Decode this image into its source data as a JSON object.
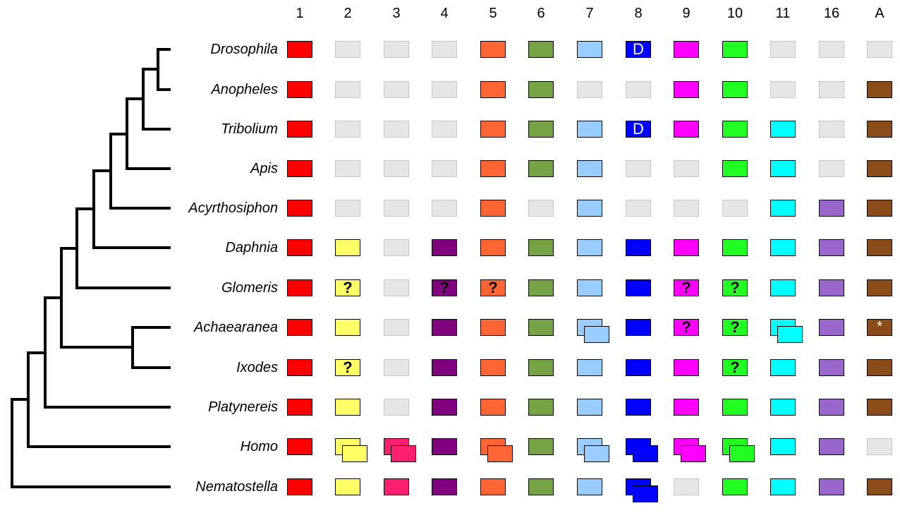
{
  "columns": [
    "1",
    "2",
    "3",
    "4",
    "5",
    "6",
    "7",
    "8",
    "9",
    "10",
    "11",
    "16",
    "A"
  ],
  "taxa": [
    "Drosophila",
    "Anopheles",
    "Tribolium",
    "Apis",
    "Acyrthosiphon",
    "Daphnia",
    "Glomeris",
    "Achaearanea",
    "Ixodes",
    "Platynereis",
    "Homo",
    "Nematostella"
  ],
  "palette": {
    "1": "#ff0000",
    "2": "#ffff66",
    "3": "#ff1f6f",
    "4": "#800080",
    "5": "#ff6633",
    "6": "#77a347",
    "7": "#99ccff",
    "8": "#0000ff",
    "9": "#ff00ff",
    "10": "#22ff22",
    "11": "#00ffff",
    "16": "#9966cc",
    "A": "#8b4c1a",
    "absent": "#e6e6e6"
  },
  "legend_note": "Each cell: present, absent, uncertain (?), duplicated (two overlapping boxes), D or * marks",
  "matrix": [
    {
      "taxon": "Drosophila",
      "cells": [
        "P",
        "A",
        "A",
        "A",
        "P",
        "P",
        "P",
        "D",
        "P",
        "P",
        "A",
        "A",
        "A"
      ]
    },
    {
      "taxon": "Anopheles",
      "cells": [
        "P",
        "A",
        "A",
        "A",
        "P",
        "P",
        "A",
        "A",
        "P",
        "P",
        "A",
        "X",
        "P"
      ]
    },
    {
      "taxon": "Tribolium",
      "cells": [
        "P",
        "A",
        "A",
        "A",
        "P",
        "P",
        "P",
        "D",
        "P",
        "P",
        "P",
        "X",
        "P"
      ]
    },
    {
      "taxon": "Apis",
      "cells": [
        "P",
        "A",
        "A",
        "A",
        "P",
        "P",
        "P",
        "A",
        "A",
        "P",
        "P",
        "A",
        "P"
      ]
    },
    {
      "taxon": "Acyrthosiphon",
      "cells": [
        "P",
        "A",
        "A",
        "A",
        "P",
        "A",
        "P",
        "A",
        "A",
        "A",
        "P",
        "P",
        "P"
      ]
    },
    {
      "taxon": "Daphnia",
      "cells": [
        "P",
        "P",
        "A",
        "P",
        "P",
        "P",
        "P",
        "P",
        "P",
        "P",
        "P",
        "P",
        "P"
      ]
    },
    {
      "taxon": "Glomeris",
      "cells": [
        "P",
        "Q",
        "A",
        "Q",
        "Q",
        "P",
        "P",
        "P",
        "Q",
        "Q",
        "P",
        "P",
        "P"
      ]
    },
    {
      "taxon": "Achaearanea",
      "cells": [
        "P",
        "P",
        "A",
        "P",
        "P",
        "P",
        "2",
        "P",
        "Q",
        "Q",
        "2",
        "P",
        "S"
      ]
    },
    {
      "taxon": "Ixodes",
      "cells": [
        "P",
        "Q",
        "A",
        "P",
        "P",
        "P",
        "P",
        "P",
        "P",
        "Q",
        "P",
        "P",
        "P"
      ]
    },
    {
      "taxon": "Platynereis",
      "cells": [
        "P",
        "P",
        "A",
        "P",
        "P",
        "P",
        "P",
        "P",
        "P",
        "P",
        "P",
        "P",
        "P"
      ]
    },
    {
      "taxon": "Homo",
      "cells": [
        "P",
        "2",
        "2",
        "P",
        "2",
        "P",
        "2",
        "2",
        "2",
        "2",
        "P",
        "P",
        "A"
      ]
    },
    {
      "taxon": "Nematostella",
      "cells": [
        "P",
        "P",
        "P",
        "P",
        "P",
        "P",
        "P",
        "2",
        "A",
        "P",
        "P",
        "P",
        "P"
      ]
    }
  ],
  "marks": {
    "question": "?",
    "duplicated_label": "D",
    "star": "*"
  }
}
